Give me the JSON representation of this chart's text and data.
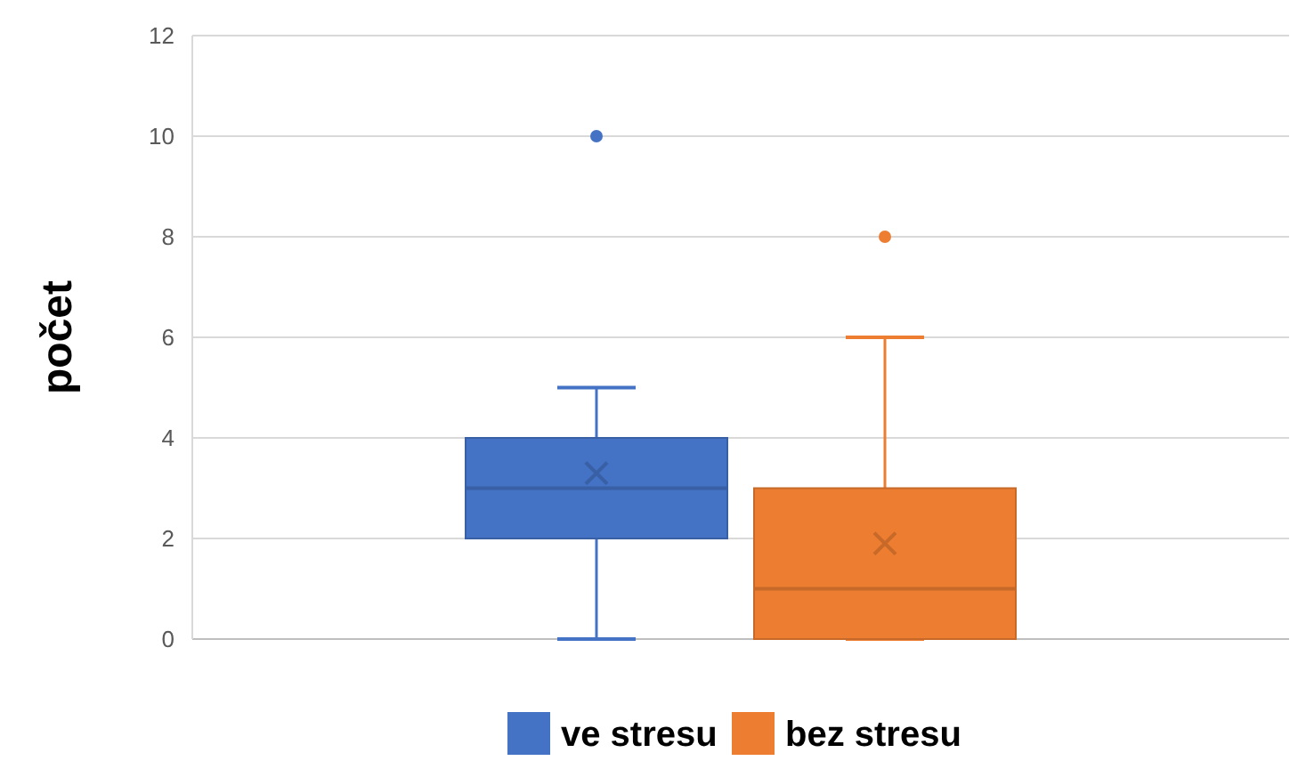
{
  "chart_data": {
    "type": "box",
    "ylabel": "počet",
    "categories": [
      null
    ],
    "ylim": [
      0,
      12
    ],
    "yticks": [
      0,
      2,
      4,
      6,
      8,
      10,
      12
    ],
    "grid": "y",
    "legend": "bottom",
    "series": [
      {
        "name": "ve stresu",
        "color": "#4472c4",
        "boxes": [
          {
            "low": 0,
            "q1": 2,
            "median": 3,
            "q3": 4,
            "high": 5,
            "mean": 3.3,
            "outliers": [
              10
            ]
          }
        ]
      },
      {
        "name": "bez stresu",
        "color": "#ed7d31",
        "boxes": [
          {
            "low": 0,
            "q1": 0,
            "median": 1,
            "q3": 3,
            "high": 6,
            "mean": 1.9,
            "outliers": [
              8
            ]
          }
        ]
      }
    ]
  }
}
